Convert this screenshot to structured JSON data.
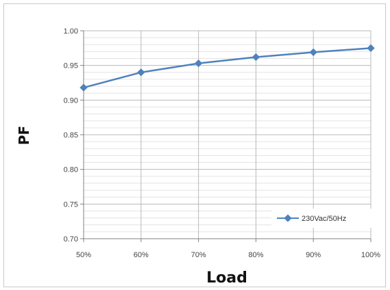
{
  "chart_data": {
    "type": "line",
    "title": "",
    "xlabel": "Load",
    "ylabel": "PF",
    "categories": [
      "50%",
      "60%",
      "70%",
      "80%",
      "90%",
      "100%"
    ],
    "ylim": [
      0.7,
      1.0
    ],
    "yticks": [
      "0.70",
      "0.75",
      "0.80",
      "0.85",
      "0.90",
      "0.95",
      "1.00"
    ],
    "minor_grid_step": 0.01,
    "grid": true,
    "legend_position": "bottom-right",
    "series": [
      {
        "name": "230Vac/50Hz",
        "color": "#4f81bd",
        "values": [
          0.918,
          0.94,
          0.953,
          0.962,
          0.969,
          0.975
        ]
      }
    ]
  }
}
